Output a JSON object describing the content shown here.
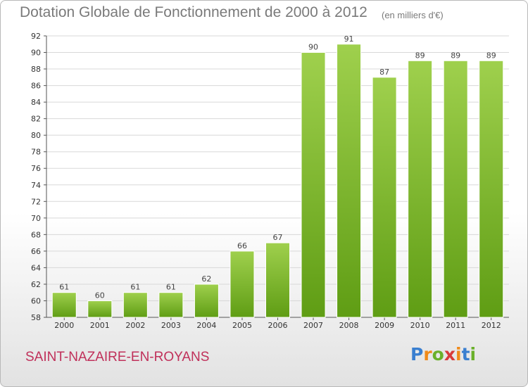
{
  "title": "Dotation Globale de Fonctionnement de 2000 à 2012",
  "subtitle": "(en milliers d'€)",
  "place": "SAINT-NAZAIRE-EN-ROYANS",
  "logo": {
    "text": "Proxiti",
    "letter_colors": [
      "#3a7fd0",
      "#f08a1a",
      "#6ab02a",
      "#d83a3a",
      "#f08a1a",
      "#3a7fd0",
      "#6ab02a"
    ]
  },
  "colors": {
    "bar_light": "#9fd04d",
    "bar_dark": "#5f9d14",
    "grid": "#d8d8d8"
  },
  "chart_data": {
    "type": "bar",
    "title": "Dotation Globale de Fonctionnement de 2000 à 2012",
    "subtitle": "(en milliers d'€)",
    "categories": [
      "2000",
      "2001",
      "2002",
      "2003",
      "2004",
      "2005",
      "2006",
      "2007",
      "2008",
      "2009",
      "2010",
      "2011",
      "2012"
    ],
    "values": [
      61,
      60,
      61,
      61,
      62,
      66,
      67,
      90,
      91,
      87,
      89,
      89,
      89
    ],
    "ylim": [
      58,
      92
    ],
    "yticks": [
      58,
      60,
      62,
      64,
      66,
      68,
      70,
      72,
      74,
      76,
      78,
      80,
      82,
      84,
      86,
      88,
      90,
      92
    ],
    "grid": true,
    "data_labels": true
  }
}
